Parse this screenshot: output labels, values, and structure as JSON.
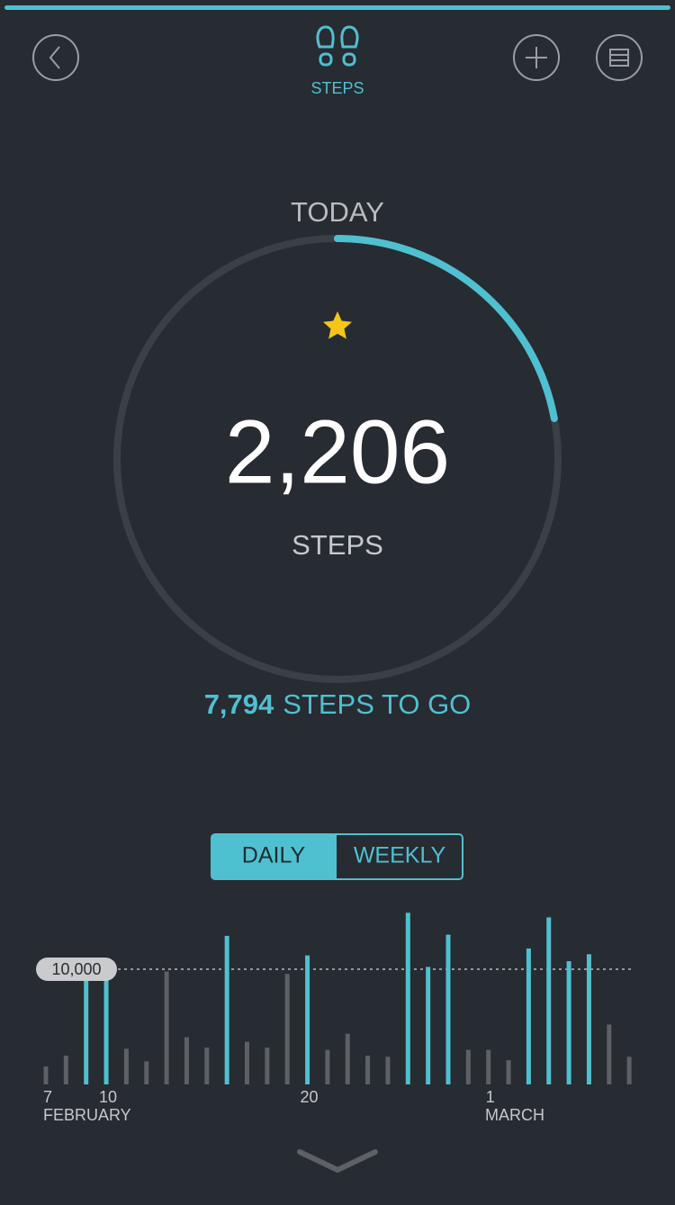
{
  "header": {
    "title": "STEPS"
  },
  "today": {
    "label": "TODAY",
    "steps": {
      "value": 2206,
      "label": "2,206"
    },
    "unit": "STEPS",
    "to_go": {
      "value": 7794,
      "label": "7,794"
    },
    "to_go_text": "STEPS TO GO"
  },
  "toggle": {
    "options": [
      "DAILY",
      "WEEKLY"
    ],
    "selected": "DAILY"
  },
  "chart_data": {
    "type": "bar",
    "categories": [
      "7",
      null,
      null,
      "10",
      null,
      null,
      null,
      null,
      null,
      null,
      null,
      null,
      null,
      "20",
      null,
      null,
      null,
      null,
      null,
      null,
      null,
      null,
      "1",
      null,
      null,
      null,
      null,
      null,
      null,
      null
    ],
    "values": [
      1560,
      2500,
      10200,
      10200,
      3100,
      2000,
      9800,
      4100,
      3200,
      12900,
      3700,
      3200,
      9600,
      11200,
      3000,
      4400,
      2500,
      2400,
      14900,
      10200,
      13000,
      3000,
      3000,
      2100,
      11800,
      14500,
      10700,
      11300,
      5200,
      2400
    ],
    "months": [
      "FEBRUARY",
      "MARCH"
    ],
    "ylim": [
      0,
      15000
    ],
    "goal": {
      "value": 10000,
      "label": "10,000"
    },
    "color": "#5d6166",
    "goal_color": "#4fc0d0"
  }
}
